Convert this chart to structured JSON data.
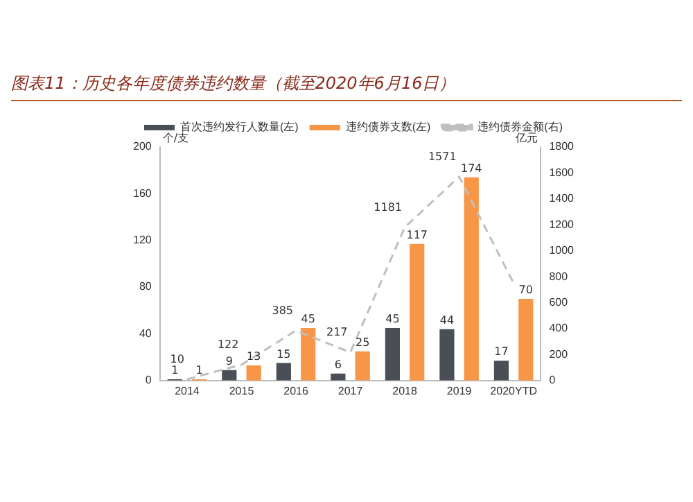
{
  "chart_data": {
    "type": "bar",
    "title": "图表11：历史各年度债券违约数量（截至2020年6月16日）",
    "ylabel": "个/支",
    "y2label": "亿元",
    "categories": [
      "2014",
      "2015",
      "2016",
      "2017",
      "2018",
      "2019",
      "2020YTD"
    ],
    "series": [
      {
        "name": "首次违约发行人数量(左)",
        "color": "#4a4f57",
        "values": [
          1,
          9,
          15,
          6,
          45,
          44,
          17
        ],
        "value_labels": [
          "1",
          "9",
          "15",
          "6",
          "45",
          "44",
          "17"
        ]
      },
      {
        "name": "违约债券支数(左)",
        "color": "#f79646",
        "values": [
          1,
          13,
          45,
          25,
          117,
          174,
          70
        ],
        "value_labels": [
          "1",
          "13",
          "45",
          "25",
          "117",
          "174",
          "70"
        ]
      },
      {
        "name": "违约债券金额(右)",
        "type": "line",
        "axis": "y2",
        "color": "#bfbfbf",
        "line_style": "dashed",
        "marker": "none",
        "values": [
          10,
          122,
          385,
          217,
          1181,
          1571,
          750
        ],
        "value_labels": [
          "10",
          "122",
          "385",
          "217",
          "1181",
          "1571",
          null
        ]
      }
    ],
    "ylim": [
      0,
      200
    ],
    "yticks": [
      0,
      40,
      80,
      120,
      160,
      200
    ],
    "y2lim": [
      0,
      1800
    ],
    "y2ticks": [
      0,
      200,
      400,
      600,
      800,
      1000,
      1200,
      1400,
      1600,
      1800
    ],
    "grid": false,
    "legend": "top"
  }
}
